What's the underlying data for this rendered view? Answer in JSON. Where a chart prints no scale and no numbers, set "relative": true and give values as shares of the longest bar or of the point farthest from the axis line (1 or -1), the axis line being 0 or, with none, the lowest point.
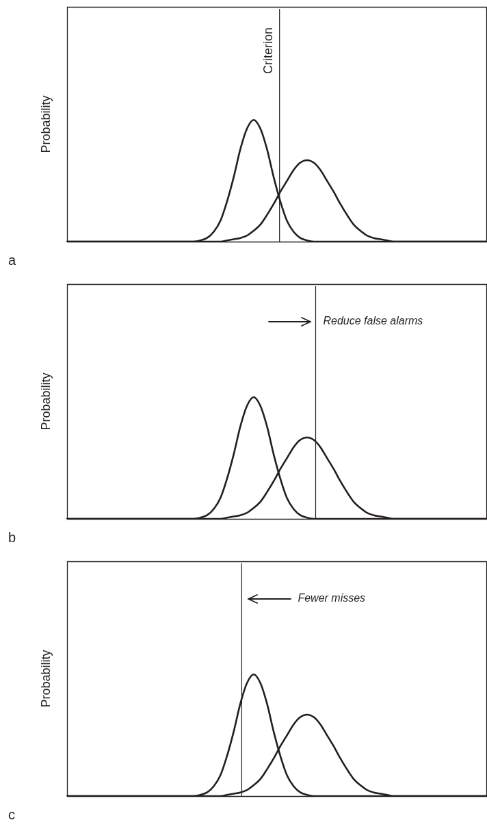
{
  "chart_data": [
    {
      "type": "line",
      "title": "a",
      "ylabel": "Probability",
      "relative": true,
      "marker": "none",
      "line_style": "solid",
      "categories": [
        null,
        null,
        null,
        null,
        null,
        null,
        null,
        null,
        null,
        null,
        null,
        null,
        null,
        null,
        null,
        null,
        null,
        null,
        null,
        null,
        null,
        null,
        null,
        null,
        null,
        null,
        null,
        null,
        null,
        null,
        null,
        null,
        null,
        null,
        null,
        null,
        null,
        null,
        null,
        null,
        null,
        null,
        null,
        null,
        null,
        null,
        null,
        null,
        null,
        null,
        null,
        null,
        null,
        null,
        null,
        null,
        null,
        null,
        null,
        null,
        null,
        null,
        null,
        null
      ],
      "series": [
        {
          "color": "#231f20",
          "values": [
            0,
            0,
            0,
            0,
            0,
            0,
            0,
            0,
            0,
            0,
            0,
            0,
            0,
            0,
            0,
            0,
            0,
            0,
            0,
            0,
            0.01,
            0.03,
            0.08,
            0.17,
            0.33,
            0.53,
            0.76,
            0.93,
            1,
            0.93,
            0.76,
            0.53,
            0.33,
            0.17,
            0.08,
            0.03,
            0.01,
            0,
            0,
            0,
            0,
            0,
            0,
            0,
            0,
            0,
            0,
            0,
            0,
            0,
            0,
            0,
            0,
            0,
            0,
            0,
            0,
            0,
            0,
            0,
            0,
            0,
            0,
            0
          ]
        },
        {
          "color": "#231f20",
          "values": [
            0,
            0,
            0,
            0,
            0,
            0,
            0,
            0,
            0,
            0,
            0,
            0,
            0,
            0,
            0,
            0,
            0,
            0,
            0,
            0,
            0,
            0,
            0,
            0,
            0.01,
            0.02,
            0.03,
            0.05,
            0.09,
            0.14,
            0.22,
            0.31,
            0.41,
            0.5,
            0.59,
            0.65,
            0.67,
            0.65,
            0.59,
            0.5,
            0.41,
            0.31,
            0.22,
            0.14,
            0.09,
            0.05,
            0.03,
            0.02,
            0.01,
            0,
            0,
            0,
            0,
            0,
            0,
            0,
            0,
            0,
            0,
            0,
            0,
            0,
            0,
            0
          ]
        }
      ],
      "annotations": [
        "Criterion"
      ]
    },
    {
      "type": "line",
      "title": "b",
      "ylabel": "Probability",
      "relative": true,
      "marker": "none",
      "line_style": "solid",
      "categories": [
        null,
        null,
        null,
        null,
        null,
        null,
        null,
        null,
        null,
        null,
        null,
        null,
        null,
        null,
        null,
        null,
        null,
        null,
        null,
        null,
        null,
        null,
        null,
        null,
        null,
        null,
        null,
        null,
        null,
        null,
        null,
        null,
        null,
        null,
        null,
        null,
        null,
        null,
        null,
        null,
        null,
        null,
        null,
        null,
        null,
        null,
        null,
        null,
        null,
        null,
        null,
        null,
        null,
        null,
        null,
        null,
        null,
        null,
        null,
        null,
        null,
        null,
        null,
        null
      ],
      "series": [
        {
          "color": "#231f20",
          "values": [
            0,
            0,
            0,
            0,
            0,
            0,
            0,
            0,
            0,
            0,
            0,
            0,
            0,
            0,
            0,
            0,
            0,
            0,
            0,
            0,
            0.01,
            0.03,
            0.08,
            0.17,
            0.33,
            0.53,
            0.76,
            0.93,
            1,
            0.93,
            0.76,
            0.53,
            0.33,
            0.17,
            0.08,
            0.03,
            0.01,
            0,
            0,
            0,
            0,
            0,
            0,
            0,
            0,
            0,
            0,
            0,
            0,
            0,
            0,
            0,
            0,
            0,
            0,
            0,
            0,
            0,
            0,
            0,
            0,
            0,
            0,
            0
          ]
        },
        {
          "color": "#231f20",
          "values": [
            0,
            0,
            0,
            0,
            0,
            0,
            0,
            0,
            0,
            0,
            0,
            0,
            0,
            0,
            0,
            0,
            0,
            0,
            0,
            0,
            0,
            0,
            0,
            0,
            0.01,
            0.02,
            0.03,
            0.05,
            0.09,
            0.14,
            0.22,
            0.31,
            0.41,
            0.5,
            0.59,
            0.65,
            0.67,
            0.65,
            0.59,
            0.5,
            0.41,
            0.31,
            0.22,
            0.14,
            0.09,
            0.05,
            0.03,
            0.02,
            0.01,
            0,
            0,
            0,
            0,
            0,
            0,
            0,
            0,
            0,
            0,
            0,
            0,
            0,
            0,
            0
          ]
        }
      ],
      "annotations": [
        "Reduce false alarms"
      ]
    },
    {
      "type": "line",
      "title": "c",
      "ylabel": "Probability",
      "relative": true,
      "marker": "none",
      "line_style": "solid",
      "categories": [
        null,
        null,
        null,
        null,
        null,
        null,
        null,
        null,
        null,
        null,
        null,
        null,
        null,
        null,
        null,
        null,
        null,
        null,
        null,
        null,
        null,
        null,
        null,
        null,
        null,
        null,
        null,
        null,
        null,
        null,
        null,
        null,
        null,
        null,
        null,
        null,
        null,
        null,
        null,
        null,
        null,
        null,
        null,
        null,
        null,
        null,
        null,
        null,
        null,
        null,
        null,
        null,
        null,
        null,
        null,
        null,
        null,
        null,
        null,
        null,
        null,
        null,
        null,
        null
      ],
      "series": [
        {
          "color": "#231f20",
          "values": [
            0,
            0,
            0,
            0,
            0,
            0,
            0,
            0,
            0,
            0,
            0,
            0,
            0,
            0,
            0,
            0,
            0,
            0,
            0,
            0,
            0.01,
            0.03,
            0.08,
            0.17,
            0.33,
            0.53,
            0.76,
            0.93,
            1,
            0.93,
            0.76,
            0.53,
            0.33,
            0.17,
            0.08,
            0.03,
            0.01,
            0,
            0,
            0,
            0,
            0,
            0,
            0,
            0,
            0,
            0,
            0,
            0,
            0,
            0,
            0,
            0,
            0,
            0,
            0,
            0,
            0,
            0,
            0,
            0,
            0,
            0,
            0
          ]
        },
        {
          "color": "#231f20",
          "values": [
            0,
            0,
            0,
            0,
            0,
            0,
            0,
            0,
            0,
            0,
            0,
            0,
            0,
            0,
            0,
            0,
            0,
            0,
            0,
            0,
            0,
            0,
            0,
            0,
            0.01,
            0.02,
            0.03,
            0.05,
            0.09,
            0.14,
            0.22,
            0.31,
            0.41,
            0.5,
            0.59,
            0.65,
            0.67,
            0.65,
            0.59,
            0.5,
            0.41,
            0.31,
            0.22,
            0.14,
            0.09,
            0.05,
            0.03,
            0.02,
            0.01,
            0,
            0,
            0,
            0,
            0,
            0,
            0,
            0,
            0,
            0,
            0,
            0,
            0,
            0,
            0
          ]
        }
      ],
      "annotations": [
        "Fewer misses"
      ]
    }
  ]
}
